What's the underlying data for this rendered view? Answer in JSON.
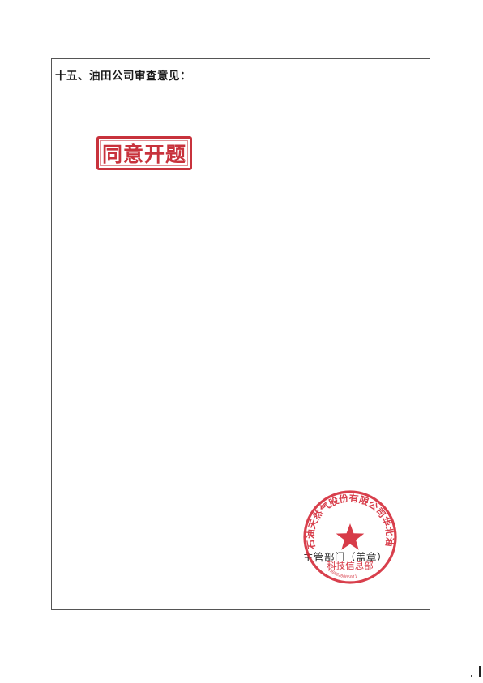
{
  "section": {
    "heading": "十五、油田公司审查意见："
  },
  "approval_stamp": {
    "text": "同意开题",
    "color": "#c8323c"
  },
  "official_seal": {
    "arc_text": "石油天然气股份有限公司华北油田分公司",
    "center_text": "科技信息部",
    "serial": "1308020006071",
    "color": "#d42a38"
  },
  "signature_line": {
    "label": "主管部门（盖章）"
  }
}
